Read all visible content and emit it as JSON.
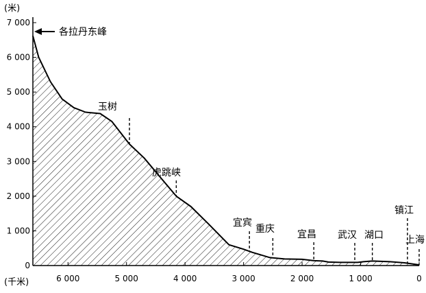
{
  "chart_data": {
    "type": "area",
    "title": "",
    "x_unit_label": "(千米)",
    "y_unit_label": "(米)",
    "xlim": [
      6600,
      0
    ],
    "ylim": [
      0,
      7000
    ],
    "x_ticks": [
      {
        "value": 6000,
        "label": "6 000"
      },
      {
        "value": 5000,
        "label": "5 000"
      },
      {
        "value": 4000,
        "label": "4 000"
      },
      {
        "value": 3000,
        "label": "3 000"
      },
      {
        "value": 2000,
        "label": "2 000"
      },
      {
        "value": 1000,
        "label": "1 000"
      },
      {
        "value": 0,
        "label": "0"
      }
    ],
    "y_ticks": [
      {
        "value": 0,
        "label": "0"
      },
      {
        "value": 1000,
        "label": "1 000"
      },
      {
        "value": 2000,
        "label": "2 000"
      },
      {
        "value": 3000,
        "label": "3 000"
      },
      {
        "value": 4000,
        "label": "4 000"
      },
      {
        "value": 5000,
        "label": "5 000"
      },
      {
        "value": 6000,
        "label": "6 000"
      },
      {
        "value": 7000,
        "label": "7 000"
      }
    ],
    "profile": [
      [
        6600,
        6621
      ],
      [
        6500,
        6000
      ],
      [
        6300,
        5300
      ],
      [
        6100,
        4800
      ],
      [
        5900,
        4550
      ],
      [
        5700,
        4420
      ],
      [
        5450,
        4380
      ],
      [
        5250,
        4150
      ],
      [
        4950,
        3500
      ],
      [
        4700,
        3100
      ],
      [
        4400,
        2500
      ],
      [
        4150,
        2000
      ],
      [
        3900,
        1700
      ],
      [
        3600,
        1200
      ],
      [
        3250,
        600
      ],
      [
        3000,
        470
      ],
      [
        2850,
        380
      ],
      [
        2550,
        230
      ],
      [
        2300,
        190
      ],
      [
        2000,
        180
      ],
      [
        1800,
        140
      ],
      [
        1650,
        130
      ],
      [
        1550,
        100
      ],
      [
        1350,
        90
      ],
      [
        1050,
        90
      ],
      [
        950,
        110
      ],
      [
        800,
        130
      ],
      [
        500,
        110
      ],
      [
        250,
        80
      ],
      [
        0,
        20
      ]
    ],
    "annotations": [
      {
        "label": "各拉丹东峰",
        "x": 6600,
        "y": 6621,
        "style": "arrow"
      },
      {
        "label": "玉树",
        "x": 4950,
        "y": 3500,
        "style": "dashed"
      },
      {
        "label": "虎跳峡",
        "x": 4150,
        "y": 2000,
        "style": "dashed"
      },
      {
        "label": "宜宾",
        "x": 2900,
        "y": 410,
        "style": "dashed"
      },
      {
        "label": "重庆",
        "x": 2500,
        "y": 220,
        "style": "dashed"
      },
      {
        "label": "宜昌",
        "x": 1800,
        "y": 140,
        "style": "dashed"
      },
      {
        "label": "武汉",
        "x": 1100,
        "y": 90,
        "style": "dashed"
      },
      {
        "label": "湖口",
        "x": 800,
        "y": 130,
        "style": "dashed"
      },
      {
        "label": "镇江",
        "x": 200,
        "y": 70,
        "style": "dashed"
      },
      {
        "label": "上海",
        "x": 0,
        "y": 20,
        "style": "dashed"
      }
    ]
  }
}
